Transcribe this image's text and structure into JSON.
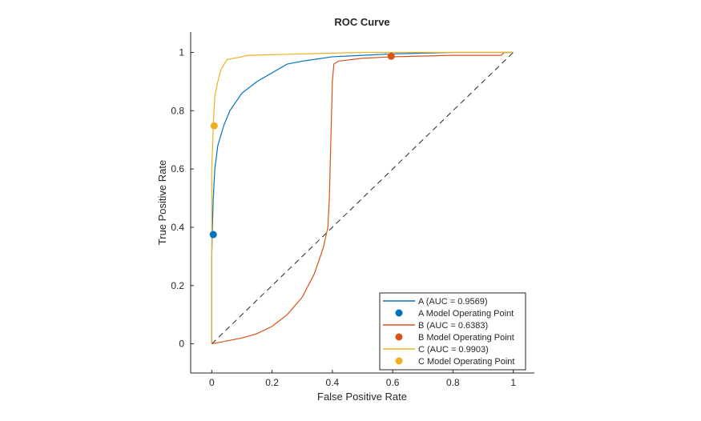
{
  "chart_data": {
    "type": "line",
    "title": "ROC Curve",
    "xlabel": "False Positive Rate",
    "ylabel": "True Positive Rate",
    "xlim": [
      -0.07,
      1.07
    ],
    "ylim": [
      -0.1,
      1.07
    ],
    "xticks": [
      0,
      0.2,
      0.4,
      0.6,
      0.8,
      1
    ],
    "xtick_labels": [
      "0",
      "0.2",
      "0.4",
      "0.6",
      "0.8",
      "1"
    ],
    "yticks": [
      0,
      0.2,
      0.4,
      0.6,
      0.8,
      1
    ],
    "ytick_labels": [
      "0",
      "0.2",
      "0.4",
      "0.6",
      "0.8",
      "1"
    ],
    "grid": false,
    "legend_position": "bottom-right",
    "diagonal": {
      "x": [
        0,
        1
      ],
      "y": [
        0,
        1
      ],
      "style": "dashed",
      "color": "#262626"
    },
    "series": [
      {
        "name": "A (AUC = 0.9569)",
        "kind": "line",
        "color": "#0072BD",
        "x": [
          0,
          0,
          0.002,
          0.005,
          0.01,
          0.02,
          0.04,
          0.06,
          0.1,
          0.15,
          0.2,
          0.25,
          0.3,
          0.4,
          0.5,
          0.6,
          0.8,
          1
        ],
        "y": [
          0,
          0.3,
          0.4,
          0.5,
          0.6,
          0.68,
          0.75,
          0.8,
          0.86,
          0.9,
          0.93,
          0.96,
          0.97,
          0.985,
          0.99,
          0.995,
          1,
          1
        ]
      },
      {
        "name": "A Model Operating Point",
        "kind": "point",
        "color": "#0072BD",
        "x": [
          0.005
        ],
        "y": [
          0.375
        ]
      },
      {
        "name": "B (AUC = 0.6383)",
        "kind": "line",
        "color": "#D95319",
        "x": [
          0,
          0.05,
          0.1,
          0.15,
          0.2,
          0.25,
          0.3,
          0.34,
          0.37,
          0.385,
          0.39,
          0.395,
          0.4,
          0.405,
          0.42,
          0.5,
          0.6,
          0.8,
          0.96,
          0.97,
          1
        ],
        "y": [
          0,
          0.01,
          0.02,
          0.035,
          0.06,
          0.1,
          0.16,
          0.24,
          0.33,
          0.4,
          0.5,
          0.7,
          0.9,
          0.96,
          0.97,
          0.98,
          0.985,
          0.99,
          0.99,
          1,
          1
        ]
      },
      {
        "name": "B Model Operating Point",
        "kind": "point",
        "color": "#D95319",
        "x": [
          0.595
        ],
        "y": [
          0.987
        ]
      },
      {
        "name": "C (AUC = 0.9903)",
        "kind": "line",
        "color": "#EDB120",
        "x": [
          0,
          0,
          0.005,
          0.01,
          0.02,
          0.03,
          0.05,
          0.1,
          0.12,
          0.3,
          0.5,
          1
        ],
        "y": [
          0,
          0.6,
          0.75,
          0.85,
          0.9,
          0.94,
          0.975,
          0.985,
          0.99,
          0.995,
          1,
          1
        ]
      },
      {
        "name": "C Model Operating Point",
        "kind": "point",
        "color": "#EDB120",
        "x": [
          0.008
        ],
        "y": [
          0.748
        ]
      }
    ]
  }
}
